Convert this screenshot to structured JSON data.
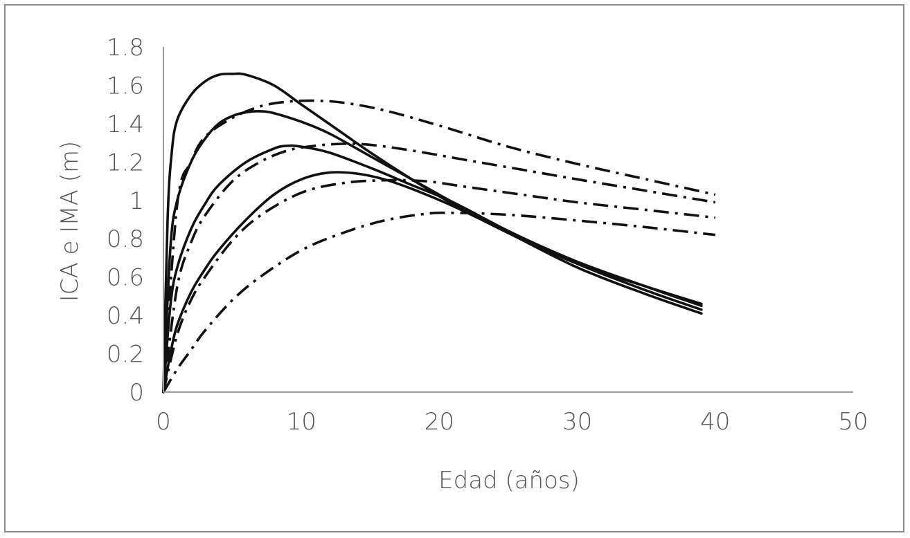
{
  "chart_data": {
    "type": "line",
    "title": "",
    "xlabel": "Edad (años)",
    "ylabel": "ICA e IMA (m)",
    "xlim": [
      0,
      50
    ],
    "ylim": [
      0,
      1.8
    ],
    "xticks": [
      0,
      10,
      20,
      30,
      40,
      50
    ],
    "xtick_labels": [
      "0",
      "10",
      "20",
      "30",
      "40",
      "50"
    ],
    "yticks": [
      0,
      0.2,
      0.4,
      0.6,
      0.8,
      1,
      1.2,
      1.4,
      1.6,
      1.8
    ],
    "ytick_labels": [
      "0",
      "0.2",
      "0.4",
      "0.6",
      "0.8",
      "1",
      "1.2",
      "1.4",
      "1.6",
      "1.8"
    ],
    "grid": false,
    "legend": "none",
    "series": [
      {
        "style": "solid",
        "x": [
          0,
          0.3,
          0.6,
          1,
          2,
          3,
          4,
          5,
          6,
          8,
          10,
          12,
          15,
          18,
          21,
          25,
          30,
          35,
          39
        ],
        "y": [
          0,
          0.9,
          1.25,
          1.42,
          1.55,
          1.62,
          1.655,
          1.66,
          1.655,
          1.6,
          1.5,
          1.4,
          1.25,
          1.11,
          0.98,
          0.83,
          0.67,
          0.55,
          0.46
        ]
      },
      {
        "style": "solid",
        "x": [
          0,
          0.5,
          1,
          2,
          3,
          4,
          5,
          6,
          7,
          8,
          10,
          12,
          15,
          18,
          21,
          25,
          30,
          35,
          39
        ],
        "y": [
          0,
          0.75,
          1.0,
          1.2,
          1.32,
          1.4,
          1.44,
          1.46,
          1.465,
          1.455,
          1.41,
          1.35,
          1.23,
          1.11,
          0.99,
          0.84,
          0.68,
          0.55,
          0.45
        ]
      },
      {
        "style": "solid",
        "x": [
          0,
          0.5,
          1,
          2,
          3,
          4,
          6,
          8,
          9,
          10,
          12,
          15,
          18,
          21,
          25,
          30,
          35,
          39
        ],
        "y": [
          0,
          0.45,
          0.65,
          0.85,
          0.98,
          1.08,
          1.2,
          1.27,
          1.285,
          1.28,
          1.25,
          1.17,
          1.08,
          0.99,
          0.84,
          0.67,
          0.53,
          0.43
        ]
      },
      {
        "style": "solid",
        "x": [
          0,
          0.5,
          1,
          2,
          3,
          4,
          6,
          8,
          10,
          12,
          14,
          16,
          18,
          21,
          25,
          30,
          35,
          39
        ],
        "y": [
          0,
          0.2,
          0.35,
          0.52,
          0.64,
          0.74,
          0.9,
          1.03,
          1.11,
          1.145,
          1.14,
          1.11,
          1.06,
          0.97,
          0.83,
          0.65,
          0.51,
          0.41
        ]
      },
      {
        "style": "dash-dot",
        "x": [
          0,
          1,
          2,
          3,
          5,
          7,
          9,
          11,
          13,
          16,
          20,
          25,
          30,
          35,
          40
        ],
        "y": [
          0,
          0.98,
          1.2,
          1.33,
          1.43,
          1.49,
          1.515,
          1.52,
          1.51,
          1.47,
          1.39,
          1.28,
          1.19,
          1.11,
          1.03
        ]
      },
      {
        "style": "dash-dot",
        "x": [
          0,
          1,
          2,
          3,
          5,
          7,
          9,
          11,
          13,
          15,
          18,
          22,
          26,
          30,
          35,
          40
        ],
        "y": [
          0,
          0.55,
          0.78,
          0.92,
          1.1,
          1.2,
          1.26,
          1.285,
          1.295,
          1.29,
          1.26,
          1.21,
          1.16,
          1.11,
          1.05,
          0.99
        ]
      },
      {
        "style": "dash-dot",
        "x": [
          0,
          1,
          2,
          3,
          5,
          7,
          10,
          13,
          16,
          19,
          22,
          26,
          30,
          35,
          40
        ],
        "y": [
          0,
          0.3,
          0.48,
          0.6,
          0.79,
          0.92,
          1.04,
          1.09,
          1.105,
          1.1,
          1.07,
          1.03,
          0.99,
          0.95,
          0.91
        ]
      },
      {
        "style": "dash-dot",
        "x": [
          0,
          1,
          2,
          3,
          5,
          7,
          10,
          13,
          16,
          19,
          21,
          25,
          30,
          35,
          40
        ],
        "y": [
          0,
          0.12,
          0.22,
          0.32,
          0.48,
          0.6,
          0.74,
          0.83,
          0.895,
          0.93,
          0.935,
          0.925,
          0.895,
          0.86,
          0.82
        ]
      }
    ]
  }
}
